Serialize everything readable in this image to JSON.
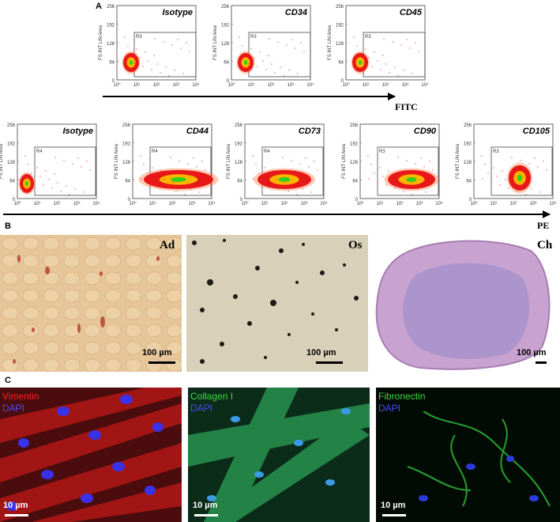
{
  "panel_letters": {
    "a": "A",
    "b": "B",
    "c": "C"
  },
  "flow": {
    "y_axis_label": "FS INT LIN Area",
    "y_ticks": [
      "256",
      "192",
      "128",
      "64",
      "0"
    ],
    "x_ticks": [
      "10⁰",
      "10¹",
      "10²",
      "10³",
      "10⁴"
    ],
    "row1_axis_title": "FITC",
    "row2_axis_title": "PE",
    "row1": [
      {
        "marker": "Isotype",
        "gate": "R3"
      },
      {
        "marker": "CD34",
        "gate": "R3"
      },
      {
        "marker": "CD45",
        "gate": "R3"
      }
    ],
    "row2": [
      {
        "marker": "Isotype",
        "gate": "R4"
      },
      {
        "marker": "CD44",
        "gate": "R4"
      },
      {
        "marker": "CD73",
        "gate": "R4"
      },
      {
        "marker": "CD90",
        "gate": "R3"
      },
      {
        "marker": "CD105",
        "gate": "R3"
      }
    ]
  },
  "stains": [
    {
      "label": "Ad",
      "scale": "100 µm",
      "label_color": "#000000"
    },
    {
      "label": "Os",
      "scale": "100 µm",
      "label_color": "#000000"
    },
    {
      "label": "Ch",
      "scale": "100 µm",
      "label_color": "#000000"
    }
  ],
  "immuno": [
    {
      "scale": "10 µm",
      "lines": [
        {
          "text": "Vimentin",
          "color": "#ff2020"
        },
        {
          "text": "DAPI",
          "color": "#4a4aff"
        }
      ]
    },
    {
      "scale": "10 µm",
      "lines": [
        {
          "text": "Collagen I",
          "color": "#3cdc3c"
        },
        {
          "text": "DAPI",
          "color": "#4a4aff"
        }
      ]
    },
    {
      "scale": "10 µm",
      "lines": [
        {
          "text": "Fibronectin",
          "color": "#3cdc3c"
        },
        {
          "text": "DAPI",
          "color": "#4a4aff"
        }
      ]
    }
  ]
}
